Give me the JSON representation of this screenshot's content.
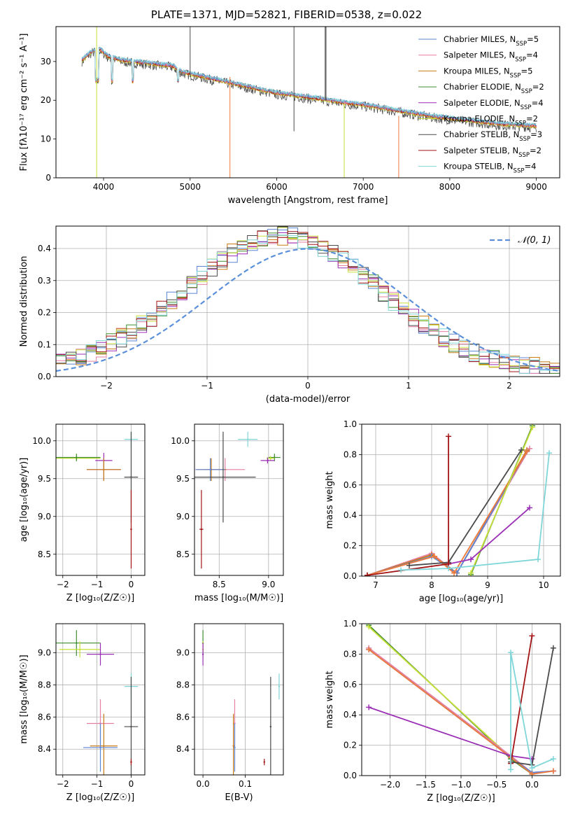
{
  "figure_title": "PLATE=1371, MJD=52821, FIBERID=0538, z=0.022",
  "colors": {
    "Chabrier MILES": "#5b85d6",
    "Salpeter MILES": "#e57fa3",
    "Kroupa MILES": "#c87b16",
    "Chabrier ELODIE": "#3e8d2f",
    "Salpeter ELODIE": "#9a2fb5",
    "Kroupa ELODIE": "#c8df3a",
    "Chabrier STELIB": "#4a4a4a",
    "Salpeter STELIB": "#a31416",
    "Kroupa STELIB": "#7fd6d8",
    "Salpeter MILES (bright)": "#ef7a3c"
  },
  "chart_data": [
    {
      "id": "spectrum",
      "type": "line",
      "xlabel": "wavelength [Angstrom, rest frame]",
      "ylabel": "Flux [fλ10⁻¹⁷ erg cm⁻² s⁻¹ A⁻¹]",
      "xlim": [
        3450,
        9270
      ],
      "ylim": [
        0,
        39
      ],
      "xticks": [
        4000,
        5000,
        6000,
        7000,
        8000,
        9000
      ],
      "yticks": [
        0,
        10,
        20,
        30
      ],
      "grid": false,
      "legend_position": "top-right",
      "legend": [
        "Chabrier MILES, N_SSP=5",
        "Salpeter MILES, N_SSP=4",
        "Kroupa MILES, N_SSP=5",
        "Chabrier ELODIE, N_SSP=2",
        "Salpeter ELODIE, N_SSP=4",
        "Kroupa ELODIE, N_SSP=2",
        "Chabrier STELIB, N_SSP=3",
        "Salpeter STELIB, N_SSP=2",
        "Kroupa STELIB, N_SSP=4"
      ],
      "continuum": {
        "x": [
          3750,
          3850,
          3950,
          4050,
          4200,
          4400,
          4600,
          4800,
          4900,
          5000,
          5200,
          5400,
          5600,
          5800,
          6000,
          6200,
          6500,
          6800,
          7000,
          7400,
          7800,
          8200,
          8600,
          9000
        ],
        "y": [
          30,
          32,
          33,
          31,
          30,
          29.5,
          29,
          28.5,
          27,
          26.5,
          25.5,
          24.5,
          23.5,
          22.5,
          21.5,
          21,
          20,
          19,
          18.5,
          17,
          15.5,
          14.5,
          13.5,
          13
        ]
      }
    },
    {
      "id": "residuals",
      "type": "histogram",
      "xlabel": "(data-model)/error",
      "ylabel": "Normed distribution",
      "xlim": [
        -2.5,
        2.5
      ],
      "ylim": [
        0,
        0.47
      ],
      "xticks": [
        -2,
        -1,
        0,
        1,
        2
      ],
      "yticks": [
        0.0,
        0.1,
        0.2,
        0.3,
        0.4
      ],
      "grid": true,
      "legend_position": "top-right",
      "reference_label": "𝒩(0, 1)",
      "bin_width": 0.1,
      "bin_start": -2.5
    },
    {
      "id": "age-vs-Z",
      "type": "scatter",
      "xlabel": "Z [log₁₀(Z/Z☉)]",
      "ylabel": "age  [log₁₀(age/yr)]",
      "xlim": [
        -2.2,
        0.4
      ],
      "ylim": [
        8.22,
        10.22
      ],
      "xticks": [
        -2,
        -1,
        0
      ],
      "yticks": [
        8.5,
        9.0,
        9.5,
        10.0
      ],
      "grid": true,
      "points": [
        {
          "model": "Kroupa ELODIE",
          "x": -1.6,
          "xerr": 0.7,
          "y": 9.77,
          "yerr": 0.03
        },
        {
          "model": "Chabrier ELODIE",
          "x": -1.6,
          "xerr": 0.7,
          "y": 9.78,
          "yerr": 0.05
        },
        {
          "model": "Salpeter ELODIE",
          "x": -0.8,
          "xerr": 0.25,
          "y": 9.74,
          "yerr": 0.1
        },
        {
          "model": "Chabrier MILES",
          "x": -0.8,
          "xerr": 0.5,
          "y": 9.62,
          "yerr": 0.15
        },
        {
          "model": "Salpeter MILES",
          "x": -0.8,
          "xerr": 0.5,
          "y": 9.62,
          "yerr": 0.15
        },
        {
          "model": "Kroupa MILES",
          "x": -0.8,
          "xerr": 0.5,
          "y": 9.62,
          "yerr": 0.15
        },
        {
          "model": "Kroupa STELIB",
          "x": 0.0,
          "xerr": 0.2,
          "y": 10.02,
          "yerr": 0.1
        },
        {
          "model": "Chabrier STELIB",
          "x": 0.0,
          "xerr": 0.2,
          "y": 9.52,
          "yerr": 0.6
        },
        {
          "model": "Salpeter STELIB",
          "x": 0.0,
          "xerr": 0.0,
          "y": 8.83,
          "yerr": 0.52
        }
      ]
    },
    {
      "id": "age-vs-mass",
      "type": "scatter",
      "xlabel": "mass [log₁₀(M/M☉)]",
      "ylabel": "",
      "xlim": [
        8.25,
        9.15
      ],
      "ylim": [
        8.22,
        10.22
      ],
      "xticks": [
        8.5,
        9.0
      ],
      "yticks": [
        8.5,
        9.0,
        9.5,
        10.0
      ],
      "grid": true,
      "points": [
        {
          "model": "Kroupa STELIB",
          "x": 8.79,
          "xerr": 0.1,
          "y": 10.02,
          "yerr": 0.1
        },
        {
          "model": "Chabrier ELODIE",
          "x": 9.06,
          "xerr": 0.06,
          "y": 9.78,
          "yerr": 0.05
        },
        {
          "model": "Kroupa ELODIE",
          "x": 9.02,
          "xerr": 0.04,
          "y": 9.77,
          "yerr": 0.03
        },
        {
          "model": "Salpeter ELODIE",
          "x": 8.99,
          "xerr": 0.07,
          "y": 9.74,
          "yerr": 0.04
        },
        {
          "model": "Salpeter MILES",
          "x": 8.56,
          "xerr": 0.2,
          "y": 9.62,
          "yerr": 0.15
        },
        {
          "model": "Kroupa MILES",
          "x": 8.42,
          "xerr": 0.15,
          "y": 9.62,
          "yerr": 0.15
        },
        {
          "model": "Chabrier MILES",
          "x": 8.41,
          "xerr": 0.15,
          "y": 9.62,
          "yerr": 0.15
        },
        {
          "model": "Chabrier STELIB",
          "x": 8.54,
          "xerr": 0.33,
          "y": 9.52,
          "yerr": 0.6
        },
        {
          "model": "Salpeter STELIB",
          "x": 8.32,
          "xerr": 0.02,
          "y": 8.83,
          "yerr": 0.52
        }
      ]
    },
    {
      "id": "weight-vs-age",
      "type": "line",
      "xlabel": "age  [log₁₀(age/yr)]",
      "ylabel": "mass weight",
      "xlim": [
        6.75,
        10.3
      ],
      "ylim": [
        0,
        1.0
      ],
      "xticks": [
        7,
        8,
        9,
        10
      ],
      "yticks": [
        0.0,
        0.2,
        0.4,
        0.6,
        0.8,
        1.0
      ],
      "grid": true,
      "series": [
        {
          "model": "Salpeter MILES",
          "x": [
            6.85,
            8.0,
            8.45,
            9.75
          ],
          "y": [
            0.005,
            0.15,
            0.02,
            0.84
          ]
        },
        {
          "model": "Kroupa MILES",
          "x": [
            6.85,
            8.0,
            8.45,
            9.7
          ],
          "y": [
            0.005,
            0.14,
            0.02,
            0.83
          ]
        },
        {
          "model": "Chabrier MILES",
          "x": [
            6.85,
            8.0,
            8.45,
            9.7
          ],
          "y": [
            0.005,
            0.13,
            0.02,
            0.82
          ]
        },
        {
          "model": "Salpeter MILES (bright)",
          "x": [
            6.85,
            8.05,
            8.4,
            9.7
          ],
          "y": [
            0.005,
            0.13,
            0.02,
            0.82
          ]
        },
        {
          "model": "Chabrier ELODIE",
          "x": [
            8.7,
            9.8
          ],
          "y": [
            0.01,
            0.99
          ]
        },
        {
          "model": "Kroupa ELODIE",
          "x": [
            8.7,
            9.8
          ],
          "y": [
            0.02,
            0.98
          ]
        },
        {
          "model": "Salpeter ELODIE",
          "x": [
            8.3,
            8.7,
            9.75
          ],
          "y": [
            0.08,
            0.11,
            0.45
          ]
        },
        {
          "model": "Chabrier STELIB",
          "x": [
            7.6,
            8.3,
            9.6
          ],
          "y": [
            0.07,
            0.09,
            0.83
          ]
        },
        {
          "model": "Salpeter STELIB",
          "x": [
            6.85,
            8.3,
            8.3
          ],
          "y": [
            0.005,
            0.08,
            0.92
          ]
        },
        {
          "model": "Kroupa STELIB",
          "x": [
            7.45,
            8.3,
            9.9,
            10.1
          ],
          "y": [
            0.04,
            0.05,
            0.11,
            0.81
          ]
        }
      ]
    },
    {
      "id": "mass-vs-Z",
      "type": "scatter",
      "xlabel": "Z [log₁₀(Z/Z☉)]",
      "ylabel": "mass [log₁₀(M/M☉)]",
      "xlim": [
        -2.2,
        0.4
      ],
      "ylim": [
        8.24,
        9.18
      ],
      "xticks": [
        -2,
        -1,
        0
      ],
      "yticks": [
        8.4,
        8.6,
        8.8,
        9.0
      ],
      "grid": true,
      "points": [
        {
          "model": "Chabrier ELODIE",
          "x": -1.6,
          "xerr": 0.7,
          "y": 9.06,
          "yerr": 0.08
        },
        {
          "model": "Kroupa ELODIE",
          "x": -1.5,
          "xerr": 0.6,
          "y": 9.02,
          "yerr": 0.05
        },
        {
          "model": "Salpeter ELODIE",
          "x": -0.9,
          "xerr": 0.4,
          "y": 8.99,
          "yerr": 0.07
        },
        {
          "model": "Kroupa STELIB",
          "x": 0.0,
          "xerr": 0.2,
          "y": 8.79,
          "yerr": 0.08
        },
        {
          "model": "Salpeter MILES",
          "x": -0.9,
          "xerr": 0.4,
          "y": 8.56,
          "yerr": 0.15
        },
        {
          "model": "Chabrier STELIB",
          "x": 0.0,
          "xerr": 0.2,
          "y": 8.54,
          "yerr": 0.31
        },
        {
          "model": "Kroupa MILES",
          "x": -0.8,
          "xerr": 0.4,
          "y": 8.42,
          "yerr": 0.2
        },
        {
          "model": "Chabrier MILES",
          "x": -0.9,
          "xerr": 0.5,
          "y": 8.41,
          "yerr": 0.15
        },
        {
          "model": "Salpeter STELIB",
          "x": 0.0,
          "xerr": 0.02,
          "y": 8.32,
          "yerr": 0.02
        }
      ]
    },
    {
      "id": "mass-vs-EBV",
      "type": "scatter",
      "xlabel": "E(B-V)",
      "ylabel": "",
      "xlim": [
        -0.02,
        0.19
      ],
      "ylim": [
        8.24,
        9.18
      ],
      "xticks": [
        0.0,
        0.1
      ],
      "yticks": [
        8.4,
        8.6,
        8.8,
        9.0
      ],
      "grid": true,
      "points": [
        {
          "model": "Chabrier ELODIE",
          "x": 0.0,
          "xerr": 0,
          "y": 9.06,
          "yerr": 0.08
        },
        {
          "model": "Kroupa ELODIE",
          "x": 0.0,
          "xerr": 0,
          "y": 9.02,
          "yerr": 0.05
        },
        {
          "model": "Salpeter ELODIE",
          "x": 0.0,
          "xerr": 0,
          "y": 8.99,
          "yerr": 0.07
        },
        {
          "model": "Salpeter MILES",
          "x": 0.075,
          "xerr": 0,
          "y": 8.56,
          "yerr": 0.15
        },
        {
          "model": "Kroupa MILES",
          "x": 0.072,
          "xerr": 0,
          "y": 8.42,
          "yerr": 0.2
        },
        {
          "model": "Chabrier MILES",
          "x": 0.075,
          "xerr": 0,
          "y": 8.41,
          "yerr": 0.15
        },
        {
          "model": "Kroupa STELIB",
          "x": 0.18,
          "xerr": 0,
          "y": 8.79,
          "yerr": 0.08
        },
        {
          "model": "Chabrier STELIB",
          "x": 0.16,
          "xerr": 0,
          "y": 8.54,
          "yerr": 0.31
        },
        {
          "model": "Salpeter STELIB",
          "x": 0.145,
          "xerr": 0,
          "y": 8.32,
          "yerr": 0.02
        }
      ]
    },
    {
      "id": "weight-vs-Z",
      "type": "line",
      "xlabel": "Z [log₁₀(Z/Z☉)]",
      "ylabel": "mass weight",
      "xlim": [
        -2.4,
        0.4
      ],
      "ylim": [
        0,
        1.0
      ],
      "xticks": [
        -2.0,
        -1.5,
        -1.0,
        -0.5,
        0.0
      ],
      "yticks": [
        0.0,
        0.2,
        0.4,
        0.6,
        0.8,
        1.0
      ],
      "grid": true,
      "series": [
        {
          "model": "Chabrier ELODIE",
          "x": [
            -2.3,
            -0.3,
            0.0
          ],
          "y": [
            0.99,
            0.11,
            0.01
          ]
        },
        {
          "model": "Kroupa ELODIE",
          "x": [
            -2.3,
            -0.3,
            0.0
          ],
          "y": [
            0.98,
            0.12,
            0.02
          ]
        },
        {
          "model": "Salpeter MILES",
          "x": [
            -2.3,
            -0.3,
            0.0,
            0.3
          ],
          "y": [
            0.84,
            0.13,
            0.02,
            0.03
          ]
        },
        {
          "model": "Chabrier MILES",
          "x": [
            -2.3,
            -0.3,
            0.0,
            0.3
          ],
          "y": [
            0.83,
            0.12,
            0.02,
            0.03
          ]
        },
        {
          "model": "Salpeter MILES (bright)",
          "x": [
            -2.3,
            -0.3,
            0.0,
            0.3
          ],
          "y": [
            0.83,
            0.12,
            0.01,
            0.03
          ]
        },
        {
          "model": "Salpeter ELODIE",
          "x": [
            -2.3,
            -0.3,
            0.0
          ],
          "y": [
            0.45,
            0.13,
            0.11
          ]
        },
        {
          "model": "Salpeter STELIB",
          "x": [
            -0.3,
            0.0
          ],
          "y": [
            0.08,
            0.92
          ]
        },
        {
          "model": "Chabrier STELIB",
          "x": [
            -0.3,
            0.0,
            0.3
          ],
          "y": [
            0.09,
            0.07,
            0.84
          ]
        },
        {
          "model": "Kroupa STELIB",
          "x": [
            -0.3,
            -0.3,
            0.0,
            0.3
          ],
          "y": [
            0.04,
            0.81,
            0.05,
            0.11
          ]
        }
      ]
    }
  ]
}
